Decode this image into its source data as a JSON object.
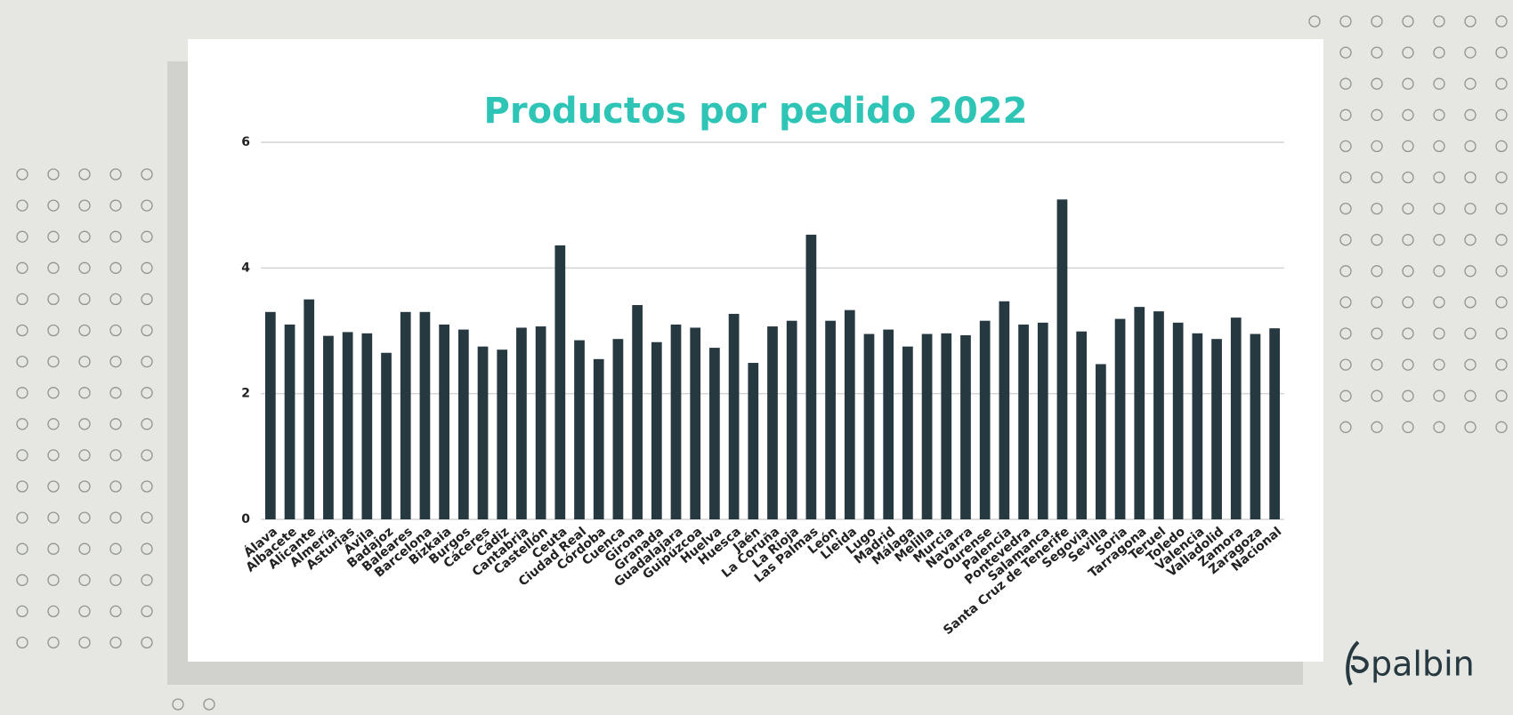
{
  "chart_data": {
    "type": "bar",
    "title": "Productos por pedido 2022",
    "categories": [
      "Álava",
      "Albacete",
      "Alicante",
      "Almería",
      "Asturias",
      "Ávila",
      "Badajoz",
      "Baleares",
      "Barcelona",
      "Bizkaia",
      "Burgos",
      "Cáceres",
      "Cádiz",
      "Cantabria",
      "Castellón",
      "Ceuta",
      "Ciudad Real",
      "Córdoba",
      "Cuenca",
      "Girona",
      "Granada",
      "Guadalajara",
      "Guipúzcoa",
      "Huelva",
      "Huesca",
      "Jaén",
      "La Coruña",
      "La Rioja",
      "Las Palmas",
      "León",
      "Lleida",
      "Lugo",
      "Madrid",
      "Málaga",
      "Melilla",
      "Murcia",
      "Navarra",
      "Ourense",
      "Palencia",
      "Pontevedra",
      "Salamanca",
      "Santa Cruz de Tenerife",
      "Segovia",
      "Sevilla",
      "Soria",
      "Tarragona",
      "Teruel",
      "Toledo",
      "Valencia",
      "Valladolid",
      "Zamora",
      "Zaragoza",
      "Nacional"
    ],
    "values": [
      3.3,
      3.1,
      3.5,
      2.92,
      2.98,
      2.96,
      2.65,
      3.3,
      3.3,
      3.1,
      3.02,
      2.75,
      2.7,
      3.05,
      3.07,
      4.36,
      2.85,
      2.55,
      2.87,
      3.41,
      2.82,
      3.1,
      3.05,
      2.73,
      3.27,
      2.49,
      3.07,
      3.16,
      4.53,
      3.16,
      3.33,
      2.95,
      3.02,
      2.75,
      2.95,
      2.96,
      2.93,
      3.16,
      3.47,
      3.1,
      3.13,
      5.09,
      2.99,
      2.47,
      3.19,
      3.38,
      3.31,
      3.13,
      2.96,
      2.87,
      3.21,
      2.95,
      3.04
    ],
    "color": "#263840",
    "ylim": [
      0,
      6
    ],
    "yticks": [
      0,
      2,
      4,
      6
    ],
    "grid": true
  },
  "logo": "palbin"
}
